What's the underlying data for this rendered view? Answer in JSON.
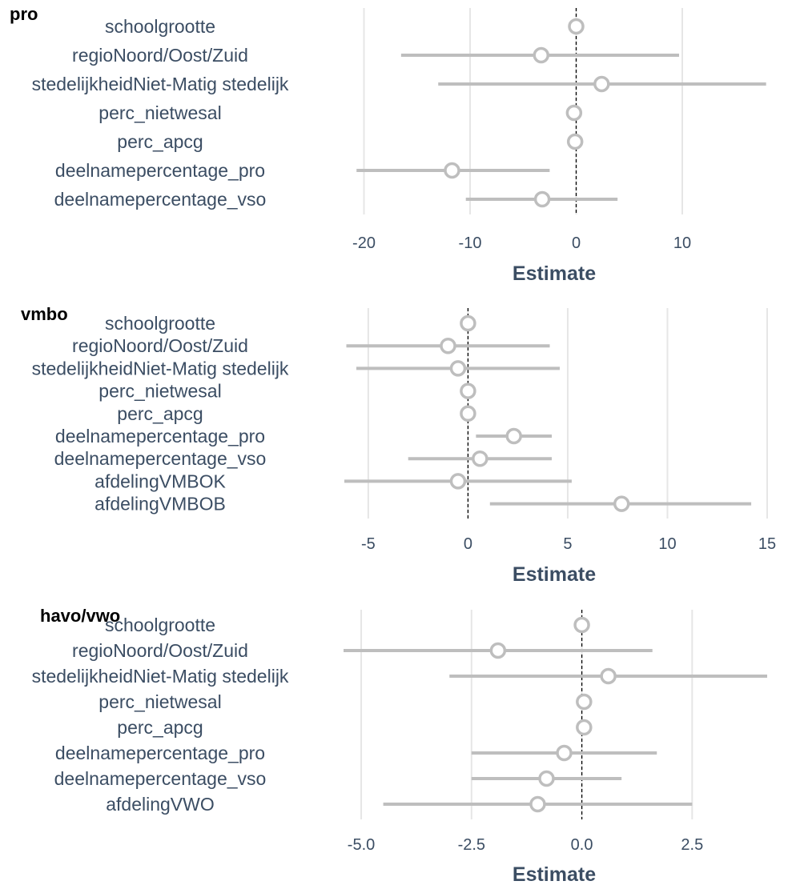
{
  "colors": {
    "ci_line": "#bebebe",
    "point_stroke": "#bebebe",
    "point_fill": "#ffffff",
    "grid": "#e6e6e6",
    "zero_line": "#000000",
    "text": "#3b4d63",
    "title": "#000000"
  },
  "chart_data": [
    {
      "type": "scatter",
      "subtype": "coefficient-plot",
      "title": "pro",
      "xlabel": "Estimate",
      "xlim": [
        -22,
        18
      ],
      "xticks": [
        -20,
        -10,
        0,
        10
      ],
      "tick_labels": [
        "-20",
        "-10",
        "0",
        "10"
      ],
      "vertical_reference_line": 0,
      "grid": true,
      "terms": [
        {
          "term": "schoolgrootte",
          "estimate": 0.0,
          "low": 0.0,
          "high": 0.0
        },
        {
          "term": "regioNoord/Oost/Zuid",
          "estimate": -3.3,
          "low": -16.5,
          "high": 9.7
        },
        {
          "term": "stedelijkheidNiet-Matig stedelijk",
          "estimate": 2.4,
          "low": -13.0,
          "high": 17.9
        },
        {
          "term": "perc_nietwesal",
          "estimate": -0.2,
          "low": -0.2,
          "high": -0.2
        },
        {
          "term": "perc_apcg",
          "estimate": -0.1,
          "low": -0.1,
          "high": -0.1
        },
        {
          "term": "deelnamepercentage_pro",
          "estimate": -11.7,
          "low": -20.7,
          "high": -2.5
        },
        {
          "term": "deelnamepercentage_vso",
          "estimate": -3.2,
          "low": -10.4,
          "high": 3.9
        }
      ]
    },
    {
      "type": "scatter",
      "subtype": "coefficient-plot",
      "title": "vmbo",
      "xlabel": "Estimate",
      "xlim": [
        -6.2,
        15.0
      ],
      "xticks": [
        -5,
        0,
        5,
        10,
        15
      ],
      "tick_labels": [
        "-5",
        "0",
        "5",
        "10",
        "15"
      ],
      "vertical_reference_line": 0,
      "grid": true,
      "terms": [
        {
          "term": "schoolgrootte",
          "estimate": 0.0,
          "low": 0.0,
          "high": 0.0
        },
        {
          "term": "regioNoord/Oost/Zuid",
          "estimate": -1.0,
          "low": -6.1,
          "high": 4.1
        },
        {
          "term": "stedelijkheidNiet-Matig stedelijk",
          "estimate": -0.5,
          "low": -5.6,
          "high": 4.6
        },
        {
          "term": "perc_nietwesal",
          "estimate": 0.0,
          "low": 0.0,
          "high": 0.0
        },
        {
          "term": "perc_apcg",
          "estimate": 0.0,
          "low": 0.0,
          "high": 0.0
        },
        {
          "term": "deelnamepercentage_pro",
          "estimate": 2.3,
          "low": 0.4,
          "high": 4.2
        },
        {
          "term": "deelnamepercentage_vso",
          "estimate": 0.6,
          "low": -3.0,
          "high": 4.2
        },
        {
          "term": "afdelingVMBOK",
          "estimate": -0.5,
          "low": -6.2,
          "high": 5.2
        },
        {
          "term": "afdelingVMBOB",
          "estimate": 7.7,
          "low": 1.1,
          "high": 14.2
        }
      ]
    },
    {
      "type": "scatter",
      "subtype": "coefficient-plot",
      "title": "havo/vwo",
      "xlabel": "Estimate",
      "xlim": [
        -5.4,
        4.2
      ],
      "xticks": [
        -5.0,
        -2.5,
        0.0,
        2.5
      ],
      "tick_labels": [
        "-5.0",
        "-2.5",
        "0.0",
        "2.5"
      ],
      "vertical_reference_line": 0,
      "grid": true,
      "terms": [
        {
          "term": "schoolgrootte",
          "estimate": 0.0,
          "low": 0.0,
          "high": 0.0
        },
        {
          "term": "regioNoord/Oost/Zuid",
          "estimate": -1.9,
          "low": -5.4,
          "high": 1.6
        },
        {
          "term": "stedelijkheidNiet-Matig stedelijk",
          "estimate": 0.6,
          "low": -3.0,
          "high": 4.2
        },
        {
          "term": "perc_nietwesal",
          "estimate": 0.05,
          "low": 0.05,
          "high": 0.05
        },
        {
          "term": "perc_apcg",
          "estimate": 0.05,
          "low": 0.05,
          "high": 0.05
        },
        {
          "term": "deelnamepercentage_pro",
          "estimate": -0.4,
          "low": -2.5,
          "high": 1.7
        },
        {
          "term": "deelnamepercentage_vso",
          "estimate": -0.8,
          "low": -2.5,
          "high": 0.9
        },
        {
          "term": "afdelingVWO",
          "estimate": -1.0,
          "low": -4.5,
          "high": 2.5
        }
      ]
    }
  ]
}
